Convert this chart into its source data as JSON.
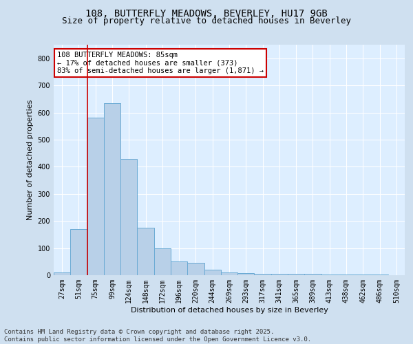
{
  "title1": "108, BUTTERFLY MEADOWS, BEVERLEY, HU17 9GB",
  "title2": "Size of property relative to detached houses in Beverley",
  "xlabel": "Distribution of detached houses by size in Beverley",
  "ylabel": "Number of detached properties",
  "categories": [
    "27sqm",
    "51sqm",
    "75sqm",
    "99sqm",
    "124sqm",
    "148sqm",
    "172sqm",
    "196sqm",
    "220sqm",
    "244sqm",
    "269sqm",
    "293sqm",
    "317sqm",
    "341sqm",
    "365sqm",
    "389sqm",
    "413sqm",
    "438sqm",
    "462sqm",
    "486sqm",
    "510sqm"
  ],
  "values": [
    10,
    170,
    580,
    635,
    430,
    175,
    100,
    50,
    45,
    20,
    10,
    8,
    6,
    5,
    5,
    4,
    3,
    2,
    2,
    2,
    1
  ],
  "bar_color": "#b8d0e8",
  "bar_edge_color": "#6aaad4",
  "vline_x_index": 2.0,
  "vline_color": "#cc0000",
  "annotation_text": "108 BUTTERFLY MEADOWS: 85sqm\n← 17% of detached houses are smaller (373)\n83% of semi-detached houses are larger (1,871) →",
  "annotation_box_color": "#ffffff",
  "annotation_box_edge": "#cc0000",
  "ylim": [
    0,
    850
  ],
  "yticks": [
    0,
    100,
    200,
    300,
    400,
    500,
    600,
    700,
    800
  ],
  "background_color": "#cfe0f0",
  "plot_bg_color": "#ddeeff",
  "footer1": "Contains HM Land Registry data © Crown copyright and database right 2025.",
  "footer2": "Contains public sector information licensed under the Open Government Licence v3.0.",
  "title_fontsize": 10,
  "subtitle_fontsize": 9,
  "axis_label_fontsize": 8,
  "tick_fontsize": 7,
  "annotation_fontsize": 7.5,
  "footer_fontsize": 6.5
}
